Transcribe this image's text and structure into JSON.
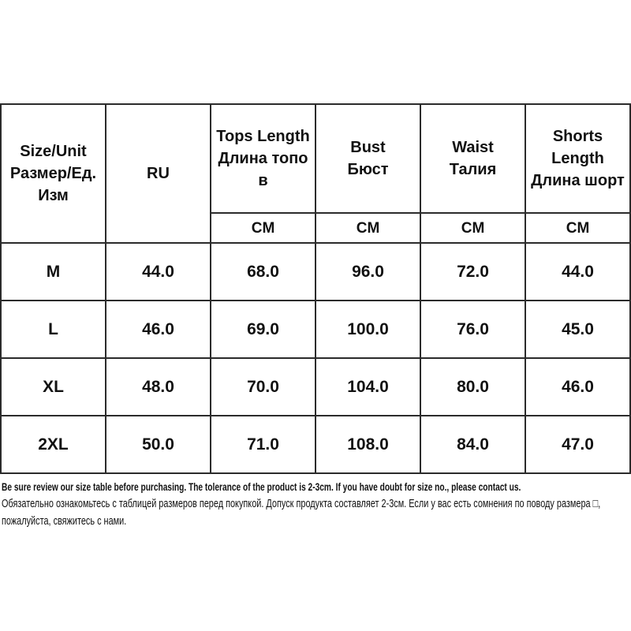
{
  "table": {
    "header": {
      "size_unit": "Size/Unit\nРазмер/Ед.\nИзм",
      "ru": "RU",
      "tops_length": "Tops Length\nДлина топо\nв",
      "bust": "Bust\nБюст",
      "waist": "Waist\nТалия",
      "shorts_length": "Shorts\nLength\nДлина шорт",
      "unit_cm": "CM"
    },
    "rows": [
      {
        "size": "M",
        "ru": "44.0",
        "tops_length": "68.0",
        "bust": "96.0",
        "waist": "72.0",
        "shorts_length": "44.0"
      },
      {
        "size": "L",
        "ru": "46.0",
        "tops_length": "69.0",
        "bust": "100.0",
        "waist": "76.0",
        "shorts_length": "45.0"
      },
      {
        "size": "XL",
        "ru": "48.0",
        "tops_length": "70.0",
        "bust": "104.0",
        "waist": "80.0",
        "shorts_length": "46.0"
      },
      {
        "size": "2XL",
        "ru": "50.0",
        "tops_length": "71.0",
        "bust": "108.0",
        "waist": "84.0",
        "shorts_length": "47.0"
      }
    ]
  },
  "footer": {
    "note_en": "Be sure review our size table before purchasing. The tolerance of the product is 2-3cm. If you have doubt for size no., please contact us.",
    "note_ru": "Обязательно ознакомьтесь с таблицей размеров перед покупкой. Допуск продукта составляет 2-3см. Если у вас есть сомнения по поводу размера □, пожалуйста, свяжитесь с нами."
  },
  "colors": {
    "border": "#2b2b2b",
    "text": "#111111",
    "background": "#ffffff"
  }
}
